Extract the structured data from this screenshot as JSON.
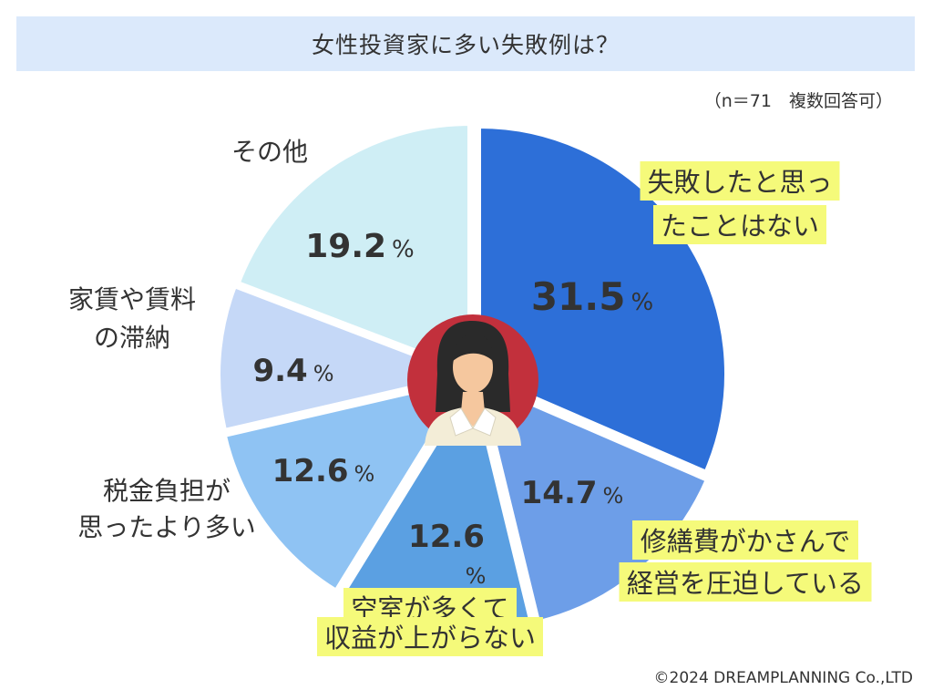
{
  "title": "女性投資家に多い失敗例は？",
  "note": "（n＝71　複数回答可）",
  "copyright": "©2024 DREAMPLANNING Co.,LTD",
  "chart_data": {
    "type": "pie",
    "unit": "%",
    "slices": [
      {
        "label_lines": [
          "失敗したと思っ",
          "たことはない"
        ],
        "value": 31.5,
        "value_text": "31.5",
        "color": "#2d6fd8",
        "highlight": true
      },
      {
        "label_lines": [
          "修繕費がかさんで",
          "経営を圧迫している"
        ],
        "value": 14.7,
        "value_text": "14.7",
        "color": "#6d9ee8",
        "highlight": true
      },
      {
        "label_lines": [
          "空室が多くて",
          "収益が上がらない"
        ],
        "value": 12.6,
        "value_text": "12.6",
        "color": "#5ba0e2",
        "highlight": true
      },
      {
        "label_lines": [
          "税金負担が",
          "思ったより多い"
        ],
        "value": 12.6,
        "value_text": "12.6",
        "color": "#8fc3f3",
        "highlight": false
      },
      {
        "label_lines": [
          "家賃や賃料",
          "の滞納"
        ],
        "value": 9.4,
        "value_text": "9.4",
        "color": "#c5d8f7",
        "highlight": false
      },
      {
        "label_lines": [
          "その他"
        ],
        "value": 19.2,
        "value_text": "19.2",
        "color": "#cfeef5",
        "highlight": false
      }
    ]
  }
}
